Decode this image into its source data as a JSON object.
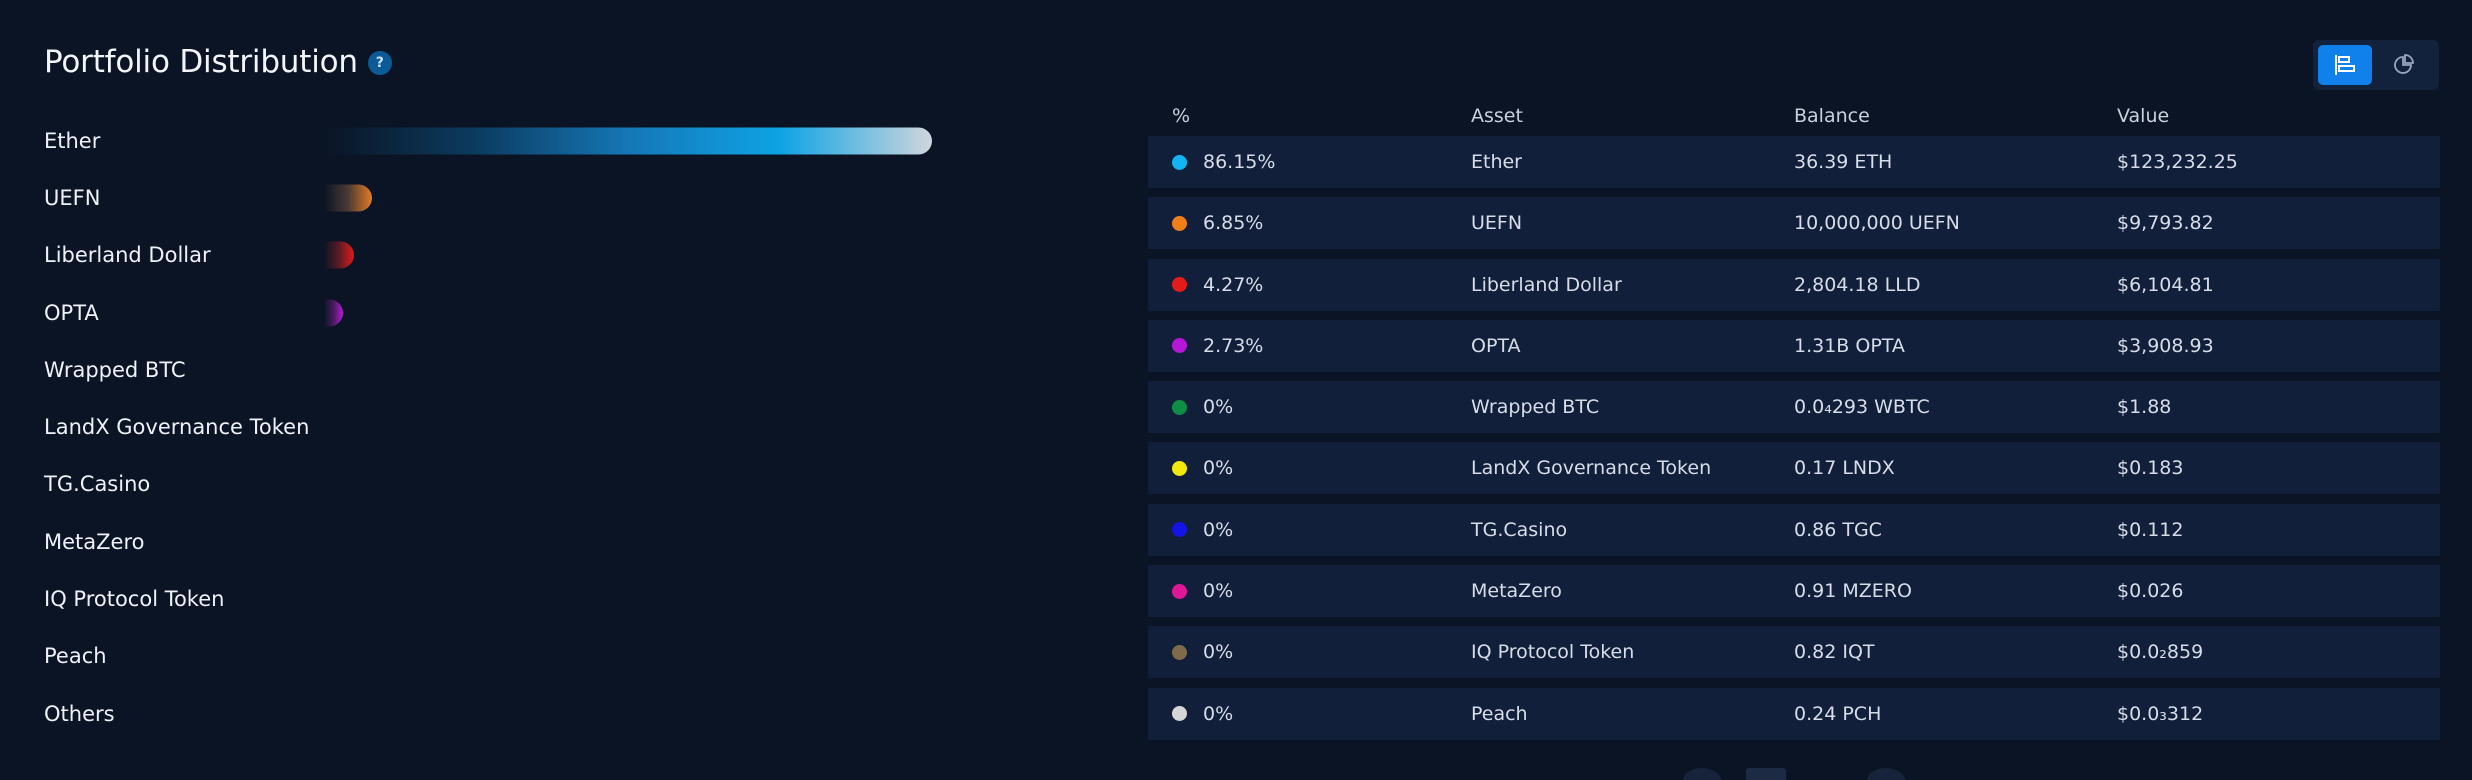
{
  "header": {
    "title": "Portfolio Distribution",
    "help_icon": "help-circle-icon"
  },
  "view_toggle": {
    "bar_view_icon": "bar-chart-icon",
    "pie_view_icon": "pie-chart-icon",
    "active": "bar"
  },
  "distribution": [
    {
      "label": "Ether",
      "percent": 86.15,
      "gradient": [
        "#0b1425",
        "#0b3b5f",
        "#1577b6",
        "#0ea3e5",
        "#cfd6dd"
      ]
    },
    {
      "label": "UEFN",
      "percent": 6.85,
      "gradient": [
        "#0b1425",
        "#4a3a33",
        "#e47a24"
      ]
    },
    {
      "label": "Liberland Dollar",
      "percent": 4.27,
      "gradient": [
        "#0b1425",
        "#5b1a25",
        "#e21a1a"
      ]
    },
    {
      "label": "OPTA",
      "percent": 2.73,
      "gradient": [
        "#0b1425",
        "#4a1a5e",
        "#b31ed4"
      ]
    },
    {
      "label": "Wrapped BTC",
      "percent": 0
    },
    {
      "label": "LandX Governance Token",
      "percent": 0
    },
    {
      "label": "TG.Casino",
      "percent": 0
    },
    {
      "label": "MetaZero",
      "percent": 0
    },
    {
      "label": "IQ Protocol Token",
      "percent": 0
    },
    {
      "label": "Peach",
      "percent": 0
    },
    {
      "label": "Others",
      "percent": 0
    }
  ],
  "table": {
    "headers": {
      "percent": "%",
      "asset": "Asset",
      "balance": "Balance",
      "value": "Value"
    },
    "rows": [
      {
        "color": "#12b5f1",
        "percent": "86.15%",
        "asset": "Ether",
        "balance": "36.39 ETH",
        "value": "$123,232.25"
      },
      {
        "color": "#f07f1a",
        "percent": "6.85%",
        "asset": "UEFN",
        "balance": "10,000,000 UEFN",
        "value": "$9,793.82"
      },
      {
        "color": "#e31b1b",
        "percent": "4.27%",
        "asset": "Liberland Dollar",
        "balance": "2,804.18 LLD",
        "value": "$6,104.81"
      },
      {
        "color": "#b517d8",
        "percent": "2.73%",
        "asset": "OPTA",
        "balance": "1.31B OPTA",
        "value": "$3,908.93"
      },
      {
        "color": "#0e8d45",
        "percent": "0%",
        "asset": "Wrapped BTC",
        "balance": "0.0₄293 WBTC",
        "value": "$1.88"
      },
      {
        "color": "#f2e80e",
        "percent": "0%",
        "asset": "LandX Governance Token",
        "balance": "0.17 LNDX",
        "value": "$0.183"
      },
      {
        "color": "#1414e6",
        "percent": "0%",
        "asset": "TG.Casino",
        "balance": "0.86 TGC",
        "value": "$0.112"
      },
      {
        "color": "#e01696",
        "percent": "0%",
        "asset": "MetaZero",
        "balance": "0.91 MZERO",
        "value": "$0.026"
      },
      {
        "color": "#7e6b49",
        "percent": "0%",
        "asset": "IQ Protocol Token",
        "balance": "0.82 IQT",
        "value": "$0.0₂859"
      },
      {
        "color": "#d6d6d6",
        "percent": "0%",
        "asset": "Peach",
        "balance": "0.24 PCH",
        "value": "$0.0₃312"
      }
    ]
  }
}
